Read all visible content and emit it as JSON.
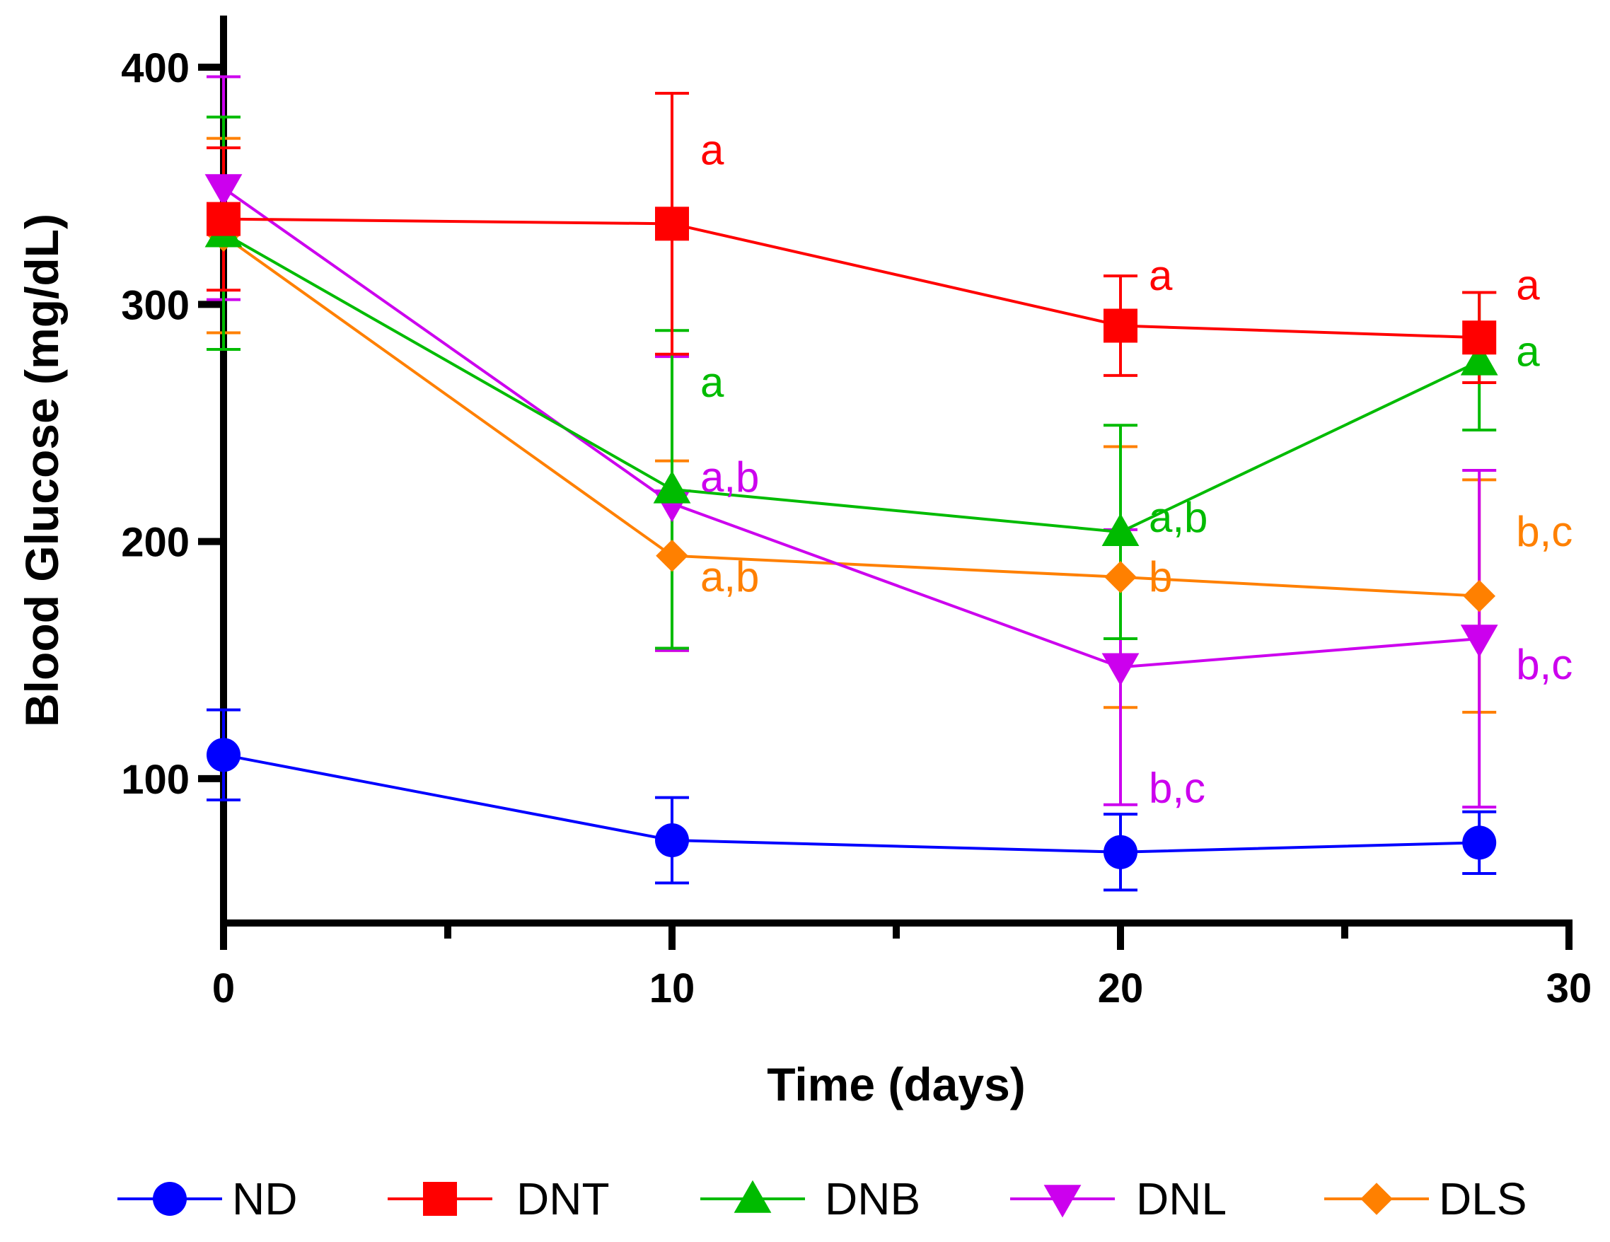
{
  "chart_data": {
    "type": "line",
    "title": "",
    "xlabel": "Time (days)",
    "ylabel": "Blood Glucose (mg/dL)",
    "xlim": [
      0,
      30
    ],
    "ylim": [
      40,
      420
    ],
    "xticks": [
      0,
      10,
      20,
      30
    ],
    "xminor": [
      5,
      15,
      25
    ],
    "yticks": [
      100,
      200,
      300,
      400
    ],
    "x": [
      0,
      10,
      20,
      28
    ],
    "series": [
      {
        "name": "ND",
        "color": "#0000ff",
        "marker": "circle",
        "values": [
          110,
          74,
          69,
          73
        ],
        "errors": [
          19,
          18,
          16,
          13
        ],
        "sig": [
          "",
          "",
          "",
          ""
        ]
      },
      {
        "name": "DNT",
        "color": "#ff0000",
        "marker": "square",
        "values": [
          336,
          334,
          291,
          286
        ],
        "errors": [
          30,
          55,
          21,
          19
        ],
        "sig": [
          "",
          "a",
          "a",
          "a"
        ]
      },
      {
        "name": "DNB",
        "color": "#00bb00",
        "marker": "triangle-up",
        "values": [
          330,
          222,
          204,
          276
        ],
        "errors": [
          49,
          67,
          45,
          29
        ],
        "sig": [
          "",
          "a",
          "a,b",
          "a"
        ]
      },
      {
        "name": "DNL",
        "color": "#cc00ee",
        "marker": "triangle-down",
        "values": [
          349,
          216,
          147,
          159
        ],
        "errors": [
          47,
          62,
          58,
          71
        ],
        "sig": [
          "",
          "a,b",
          "b,c",
          "b,c"
        ]
      },
      {
        "name": "DLS",
        "color": "#ff8000",
        "marker": "diamond",
        "values": [
          329,
          194,
          185,
          177
        ],
        "errors": [
          41,
          40,
          55,
          49
        ],
        "sig": [
          "",
          "a,b",
          "b",
          "b,c"
        ]
      }
    ],
    "legend_position": "bottom"
  }
}
